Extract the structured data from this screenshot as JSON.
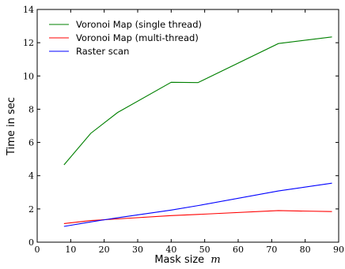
{
  "chart_data": {
    "type": "line",
    "xlabel": "Mask size",
    "xlabel_var": "m",
    "ylabel": "Time in sec",
    "xlim": [
      0,
      90
    ],
    "ylim": [
      0,
      14
    ],
    "xticks": [
      0,
      10,
      20,
      30,
      40,
      50,
      60,
      70,
      80,
      90
    ],
    "yticks": [
      0,
      2,
      4,
      6,
      8,
      10,
      12,
      14
    ],
    "grid": false,
    "legend_position": "top-left",
    "series": [
      {
        "name": "Voronoi Map (single thread)",
        "color": "#008000",
        "x": [
          8,
          16,
          24,
          40,
          48,
          72,
          88
        ],
        "y": [
          4.65,
          6.55,
          7.8,
          9.62,
          9.6,
          11.95,
          12.35
        ]
      },
      {
        "name": "Voronoi Map (multi-thread)",
        "color": "#ff0000",
        "x": [
          8,
          16,
          24,
          40,
          48,
          72,
          88
        ],
        "y": [
          1.12,
          1.3,
          1.4,
          1.6,
          1.67,
          1.9,
          1.84
        ]
      },
      {
        "name": "Raster scan",
        "color": "#0000ff",
        "x": [
          8,
          16,
          24,
          40,
          48,
          72,
          88
        ],
        "y": [
          0.95,
          1.22,
          1.47,
          1.93,
          2.2,
          3.08,
          3.55
        ]
      }
    ]
  }
}
